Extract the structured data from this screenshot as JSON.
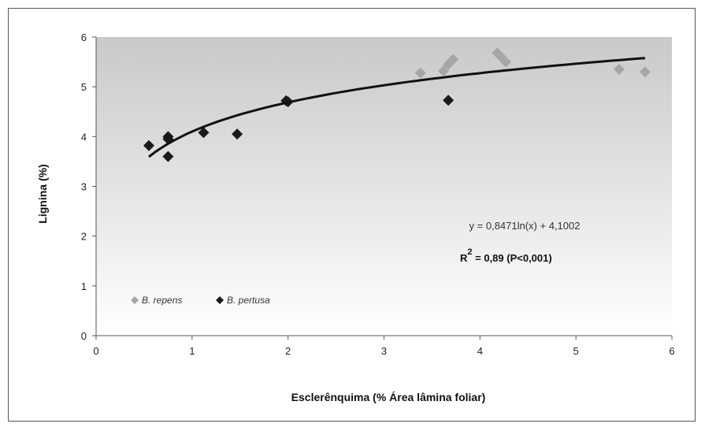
{
  "chart_data": {
    "type": "scatter",
    "xlabel": "Esclerênquima (% Área lâmina foliar)",
    "ylabel": "Lignina (%)",
    "xlim": [
      0,
      6
    ],
    "ylim": [
      0,
      6
    ],
    "xticks": [
      "0",
      "1",
      "2",
      "3",
      "4",
      "5",
      "6"
    ],
    "yticks": [
      "0",
      "1",
      "2",
      "3",
      "4",
      "5",
      "6"
    ],
    "grid": false,
    "background": "gradient-gray",
    "legend_position": "bottom-left",
    "series": [
      {
        "name": "B. repens",
        "color": "#a6a6a6",
        "marker": "diamond",
        "points": [
          [
            3.38,
            5.28
          ],
          [
            3.62,
            5.32
          ],
          [
            3.67,
            5.45
          ],
          [
            3.72,
            5.55
          ],
          [
            4.18,
            5.68
          ],
          [
            4.22,
            5.6
          ],
          [
            4.27,
            5.5
          ],
          [
            5.45,
            5.35
          ],
          [
            5.72,
            5.3
          ]
        ]
      },
      {
        "name": "B. pertusa",
        "color": "#1a1a1a",
        "marker": "diamond",
        "points": [
          [
            0.55,
            3.82
          ],
          [
            0.75,
            4.0
          ],
          [
            0.75,
            3.6
          ],
          [
            0.75,
            3.95
          ],
          [
            1.12,
            4.08
          ],
          [
            1.47,
            4.05
          ],
          [
            1.98,
            4.72
          ],
          [
            2.0,
            4.7
          ],
          [
            3.67,
            4.73
          ]
        ]
      }
    ],
    "trendline": {
      "type": "logarithmic",
      "a": 0.8471,
      "b": 4.1002,
      "x_range": [
        0.55,
        5.72
      ],
      "color": "#111111"
    },
    "annotations": {
      "equation": "y = 0,8471ln(x) + 4,1002",
      "r2_label": "R",
      "r2_sup": "2",
      "r2_value": " = 0,89 (P<0,001)"
    }
  }
}
